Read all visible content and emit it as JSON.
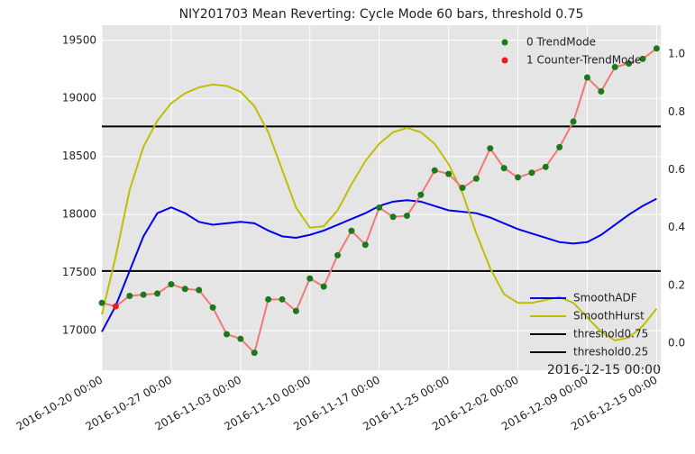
{
  "chart_data": {
    "type": "line",
    "title": "NIY201703 Mean Reverting: Cycle Mode 60 bars, threshold 0.75",
    "annotation": "2016-12-15 00:00",
    "xlim": [
      0,
      40.3
    ],
    "xticks": [
      {
        "value": 0,
        "label": "2016-10-20 00:00"
      },
      {
        "value": 5,
        "label": "2016-10-27 00:00"
      },
      {
        "value": 10,
        "label": "2016-11-03 00:00"
      },
      {
        "value": 15,
        "label": "2016-11-10 00:00"
      },
      {
        "value": 20,
        "label": "2016-11-17 00:00"
      },
      {
        "value": 25,
        "label": "2016-11-25 00:00"
      },
      {
        "value": 30,
        "label": "2016-12-02 00:00"
      },
      {
        "value": 35,
        "label": "2016-12-09 00:00"
      },
      {
        "value": 40,
        "label": "2016-12-15 00:00"
      }
    ],
    "ylim": [
      16660,
      19630
    ],
    "yticks": [
      17000,
      17500,
      18000,
      18500,
      19000,
      19500
    ],
    "y2lim": [
      -0.093,
      1.1
    ],
    "y2ticks": [
      {
        "value": 0,
        "label": "0.0"
      },
      {
        "value": 0.2,
        "label": "0.2"
      },
      {
        "value": 0.4,
        "label": "0.4"
      },
      {
        "value": 0.6,
        "label": "0.6"
      },
      {
        "value": 0.8,
        "label": "0.8"
      },
      {
        "value": 1.0,
        "label": "1.0"
      }
    ],
    "grid": true,
    "price": {
      "color": "#f07878",
      "values": [
        17240,
        17210,
        17300,
        17310,
        17320,
        17400,
        17360,
        17350,
        17200,
        16970,
        16930,
        16810,
        17270,
        17270,
        17170,
        17450,
        17380,
        17650,
        17860,
        17740,
        18060,
        17980,
        17990,
        18170,
        18380,
        18350,
        18230,
        18310,
        18570,
        18400,
        18320,
        18360,
        18410,
        18580,
        18800,
        19180,
        19060,
        19270,
        19300,
        19340,
        19430
      ],
      "modes": [
        0,
        1,
        0,
        0,
        0,
        0,
        0,
        0,
        0,
        0,
        0,
        0,
        0,
        0,
        0,
        0,
        0,
        0,
        0,
        0,
        0,
        0,
        0,
        0,
        0,
        0,
        0,
        0,
        0,
        0,
        0,
        0,
        0,
        0,
        0,
        0,
        0,
        0,
        0,
        0,
        0
      ]
    },
    "mode_legend": [
      {
        "name": "0 TrendMode",
        "color": "#1a7a1a"
      },
      {
        "name": "1 Counter-TrendMode",
        "color": "#e8201a"
      }
    ],
    "series": [
      {
        "name": "SmoothADF",
        "color": "#0000ee",
        "axis": "y2",
        "values": [
          0.04,
          0.13,
          0.25,
          0.37,
          0.45,
          0.47,
          0.45,
          0.42,
          0.41,
          0.415,
          0.42,
          0.415,
          0.39,
          0.37,
          0.365,
          0.375,
          0.39,
          0.41,
          0.43,
          0.45,
          0.475,
          0.49,
          0.495,
          0.49,
          0.475,
          0.46,
          0.455,
          0.45,
          0.435,
          0.415,
          0.395,
          0.38,
          0.365,
          0.35,
          0.345,
          0.35,
          0.375,
          0.41,
          0.445,
          0.475,
          0.5
        ]
      },
      {
        "name": "SmoothHurst",
        "color": "#bfbf00",
        "axis": "y2",
        "values": [
          0.1,
          0.3,
          0.53,
          0.68,
          0.77,
          0.83,
          0.865,
          0.885,
          0.895,
          0.89,
          0.87,
          0.82,
          0.73,
          0.6,
          0.47,
          0.4,
          0.405,
          0.46,
          0.55,
          0.63,
          0.69,
          0.73,
          0.745,
          0.73,
          0.69,
          0.62,
          0.52,
          0.38,
          0.26,
          0.17,
          0.14,
          0.14,
          0.15,
          0.16,
          0.14,
          0.09,
          0.04,
          0.01,
          0.02,
          0.06,
          0.12
        ]
      }
    ],
    "thresholds": [
      {
        "name": "threshold0.75",
        "color": "#000000",
        "value": 0.75
      },
      {
        "name": "threshold0.25",
        "color": "#000000",
        "value": 0.25
      }
    ]
  }
}
